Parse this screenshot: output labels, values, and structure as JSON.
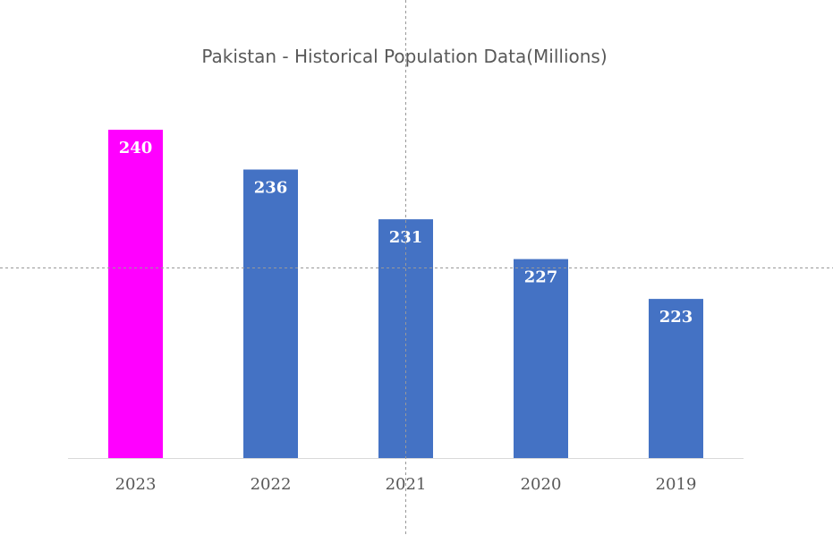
{
  "chart_data": {
    "type": "bar",
    "title": "Pakistan - Historical Population Data(Millions)",
    "xlabel": "",
    "ylabel": "",
    "categories": [
      "2023",
      "2022",
      "2021",
      "2020",
      "2019"
    ],
    "values": [
      240,
      236,
      231,
      227,
      223
    ],
    "data_labels": [
      "240",
      "236",
      "231",
      "227",
      "223"
    ],
    "bar_colors": [
      "#ff00ff",
      "#4472c4",
      "#4472c4",
      "#4472c4",
      "#4472c4"
    ],
    "highlight_color": "#ff00ff",
    "series_color": "#4472c4",
    "ylim": [
      207,
      242
    ],
    "y_axis_visible": false,
    "grid": false,
    "legend": "none"
  }
}
